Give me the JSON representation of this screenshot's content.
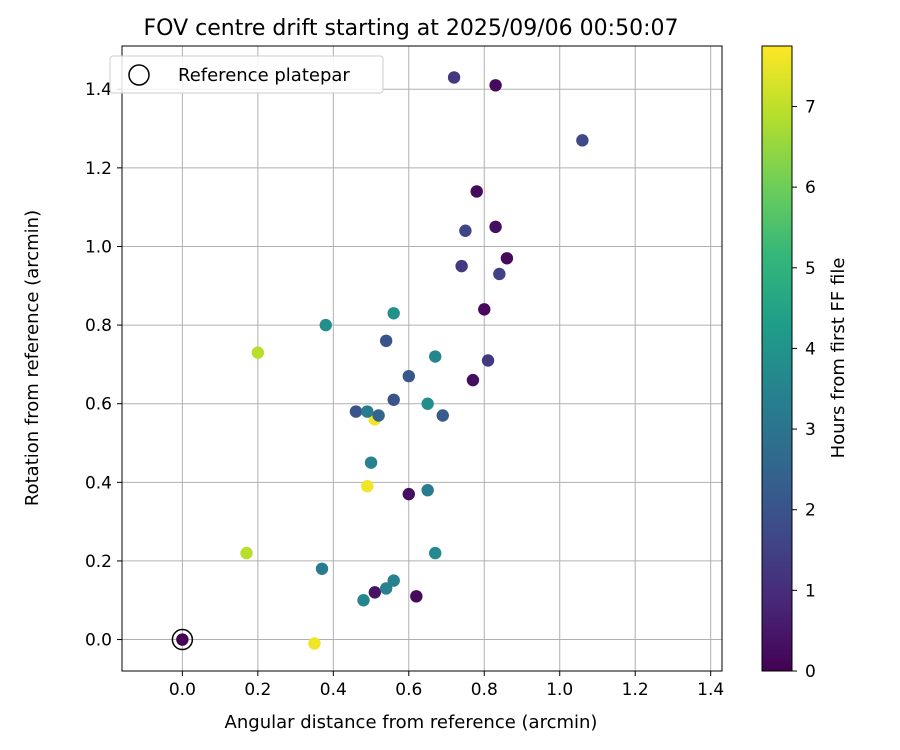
{
  "chart_data": {
    "type": "scatter",
    "title": "FOV centre drift starting at 2025/09/06 00:50:07",
    "xlabel": "Angular distance from reference (arcmin)",
    "ylabel": "Rotation from reference (arcmin)",
    "xlim": [
      -0.16,
      1.43
    ],
    "ylim": [
      -0.08,
      1.51
    ],
    "xticks": [
      0.0,
      0.2,
      0.4,
      0.6,
      0.8,
      1.0,
      1.2,
      1.4
    ],
    "yticks": [
      0.0,
      0.2,
      0.4,
      0.6,
      0.8,
      1.0,
      1.2,
      1.4
    ],
    "grid": true,
    "legend": {
      "position": "top-left",
      "label": "Reference platepar"
    },
    "reference_point": {
      "x": 0.0,
      "y": 0.0
    },
    "colorbar": {
      "label": "Hours from first FF file",
      "colormap": "viridis",
      "range": [
        0,
        7.75
      ],
      "ticks": [
        0,
        1,
        2,
        3,
        4,
        5,
        6,
        7
      ]
    },
    "points": [
      {
        "x": 0.0,
        "y": 0.0,
        "hours": 0.0
      },
      {
        "x": 0.35,
        "y": -0.01,
        "hours": 7.6
      },
      {
        "x": 0.17,
        "y": 0.22,
        "hours": 6.9
      },
      {
        "x": 0.2,
        "y": 0.73,
        "hours": 6.9
      },
      {
        "x": 0.37,
        "y": 0.18,
        "hours": 3.2
      },
      {
        "x": 0.38,
        "y": 0.8,
        "hours": 3.8
      },
      {
        "x": 0.48,
        "y": 0.1,
        "hours": 3.6
      },
      {
        "x": 0.49,
        "y": 0.39,
        "hours": 7.6
      },
      {
        "x": 0.51,
        "y": 0.56,
        "hours": 7.6
      },
      {
        "x": 0.5,
        "y": 0.45,
        "hours": 3.4
      },
      {
        "x": 0.46,
        "y": 0.58,
        "hours": 2.0
      },
      {
        "x": 0.49,
        "y": 0.58,
        "hours": 3.2
      },
      {
        "x": 0.52,
        "y": 0.57,
        "hours": 2.5
      },
      {
        "x": 0.51,
        "y": 0.12,
        "hours": 0.4
      },
      {
        "x": 0.54,
        "y": 0.13,
        "hours": 3.4
      },
      {
        "x": 0.56,
        "y": 0.15,
        "hours": 3.4
      },
      {
        "x": 0.56,
        "y": 0.83,
        "hours": 3.9
      },
      {
        "x": 0.54,
        "y": 0.76,
        "hours": 2.0
      },
      {
        "x": 0.56,
        "y": 0.61,
        "hours": 2.0
      },
      {
        "x": 0.6,
        "y": 0.37,
        "hours": 0.3
      },
      {
        "x": 0.6,
        "y": 0.67,
        "hours": 2.1
      },
      {
        "x": 0.62,
        "y": 0.11,
        "hours": 0.2
      },
      {
        "x": 0.65,
        "y": 0.38,
        "hours": 3.2
      },
      {
        "x": 0.65,
        "y": 0.6,
        "hours": 3.8
      },
      {
        "x": 0.67,
        "y": 0.22,
        "hours": 3.7
      },
      {
        "x": 0.67,
        "y": 0.72,
        "hours": 3.6
      },
      {
        "x": 0.69,
        "y": 0.57,
        "hours": 2.2
      },
      {
        "x": 0.72,
        "y": 1.43,
        "hours": 1.3
      },
      {
        "x": 0.74,
        "y": 0.95,
        "hours": 1.3
      },
      {
        "x": 0.75,
        "y": 1.04,
        "hours": 1.6
      },
      {
        "x": 0.77,
        "y": 0.66,
        "hours": 0.3
      },
      {
        "x": 0.78,
        "y": 1.14,
        "hours": 0.2
      },
      {
        "x": 0.8,
        "y": 0.84,
        "hours": 0.2
      },
      {
        "x": 0.81,
        "y": 0.71,
        "hours": 1.3
      },
      {
        "x": 0.83,
        "y": 1.41,
        "hours": 0.2
      },
      {
        "x": 0.83,
        "y": 1.05,
        "hours": 0.3
      },
      {
        "x": 0.84,
        "y": 0.93,
        "hours": 1.5
      },
      {
        "x": 0.86,
        "y": 0.97,
        "hours": 0.2
      },
      {
        "x": 1.06,
        "y": 1.27,
        "hours": 1.7
      }
    ]
  }
}
